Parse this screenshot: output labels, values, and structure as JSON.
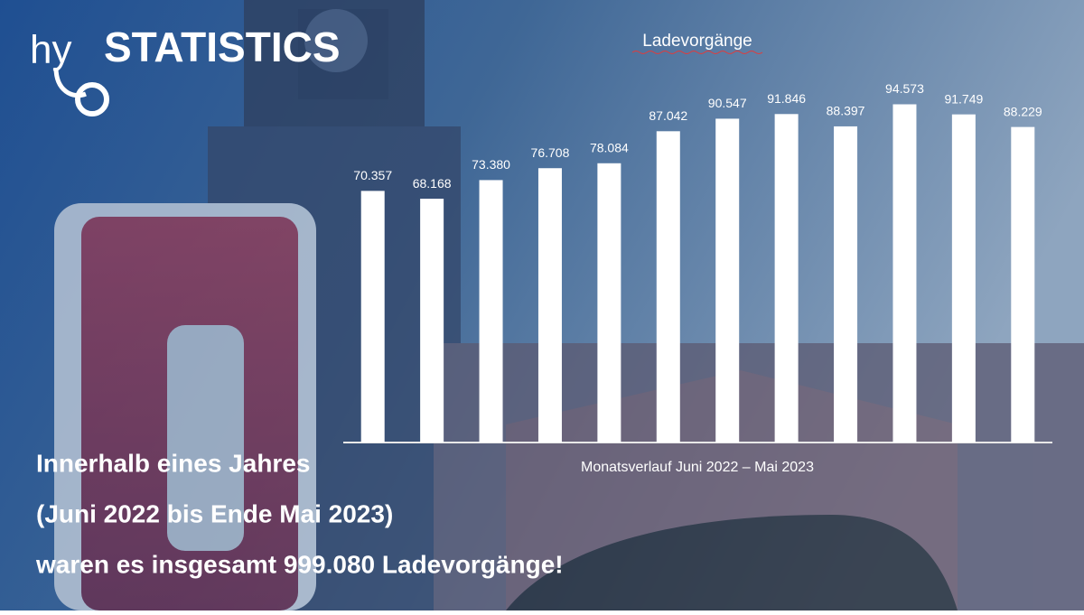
{
  "brand": {
    "prefix": "hy",
    "name": "STATISTICS"
  },
  "chart_data": {
    "type": "bar",
    "title": "Ladevorgänge",
    "x_label": "Monatsverlauf Juni 2022 – Mai 2023",
    "categories": [
      null,
      null,
      null,
      null,
      null,
      null,
      null,
      null,
      null,
      null,
      null,
      null
    ],
    "values": [
      70357,
      68168,
      73380,
      76708,
      78084,
      87042,
      90547,
      91846,
      88397,
      94573,
      91749,
      88229
    ],
    "value_labels": [
      "70.357",
      "68.168",
      "73.380",
      "76.708",
      "78.084",
      "87.042",
      "90.547",
      "91.846",
      "88.397",
      "94.573",
      "91.749",
      "88.229"
    ],
    "color": "#ffffff",
    "ylim": [
      0,
      100000
    ],
    "annotations": [
      "Innerhalb eines Jahres",
      "(Juni 2022 bis Ende Mai 2023)",
      "waren es insgesamt 999.080 Ladevorgänge!"
    ]
  }
}
